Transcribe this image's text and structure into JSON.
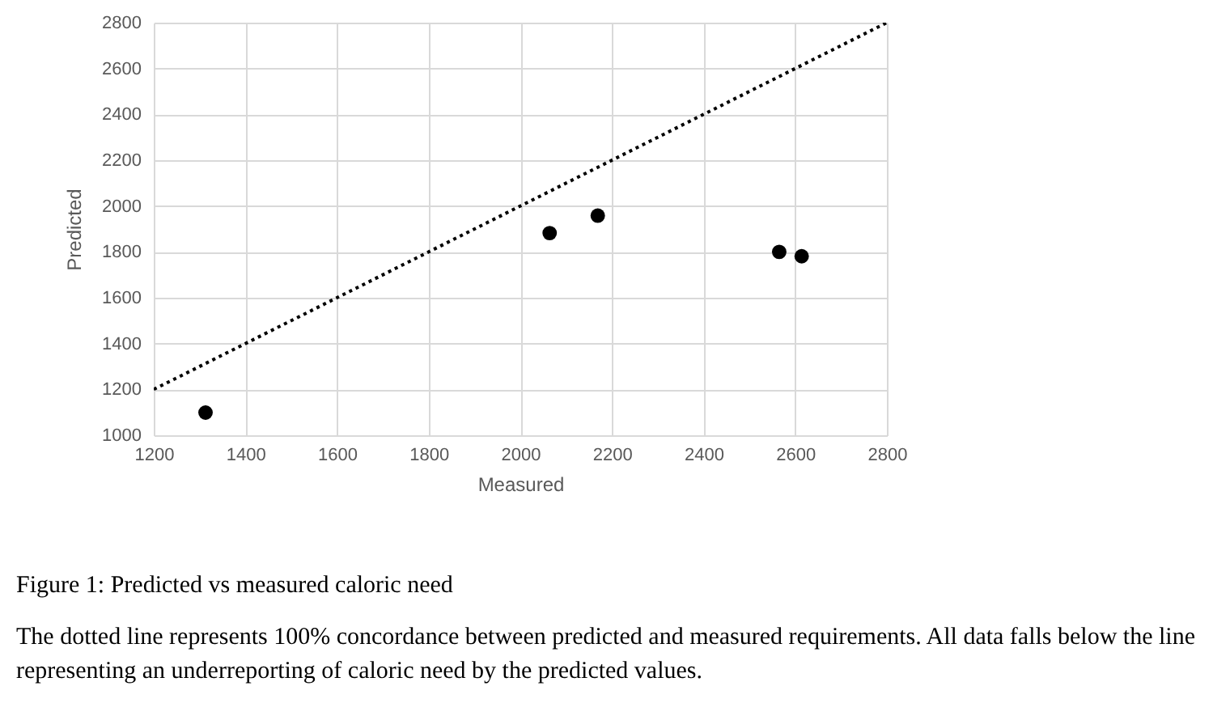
{
  "chart_data": {
    "type": "scatter",
    "xlabel": "Measured",
    "ylabel": "Predicted",
    "xlim": [
      1200,
      2800
    ],
    "ylim": [
      1000,
      2800
    ],
    "xticks": [
      1200,
      1400,
      1600,
      1800,
      2000,
      2200,
      2400,
      2600,
      2800
    ],
    "yticks": [
      1000,
      1200,
      1400,
      1600,
      1800,
      2000,
      2200,
      2400,
      2600,
      2800
    ],
    "grid": true,
    "series": [
      {
        "color": "#000000",
        "marker": "circle",
        "x": [
          1313,
          2064,
          2169,
          2565,
          2614
        ],
        "values": [
          1099,
          1882,
          1958,
          1800,
          1781
        ]
      },
      {
        "type": "line",
        "color": "#000000",
        "line_style": "dotted",
        "x": [
          1200,
          2800
        ],
        "values": [
          1200,
          2800
        ]
      }
    ],
    "annotations": [
      "Figure 1: Predicted vs measured caloric need",
      "The dotted line represents 100% concordance between predicted and measured requirements. All data falls below the line representing an underreporting of caloric need by the predicted values."
    ]
  }
}
